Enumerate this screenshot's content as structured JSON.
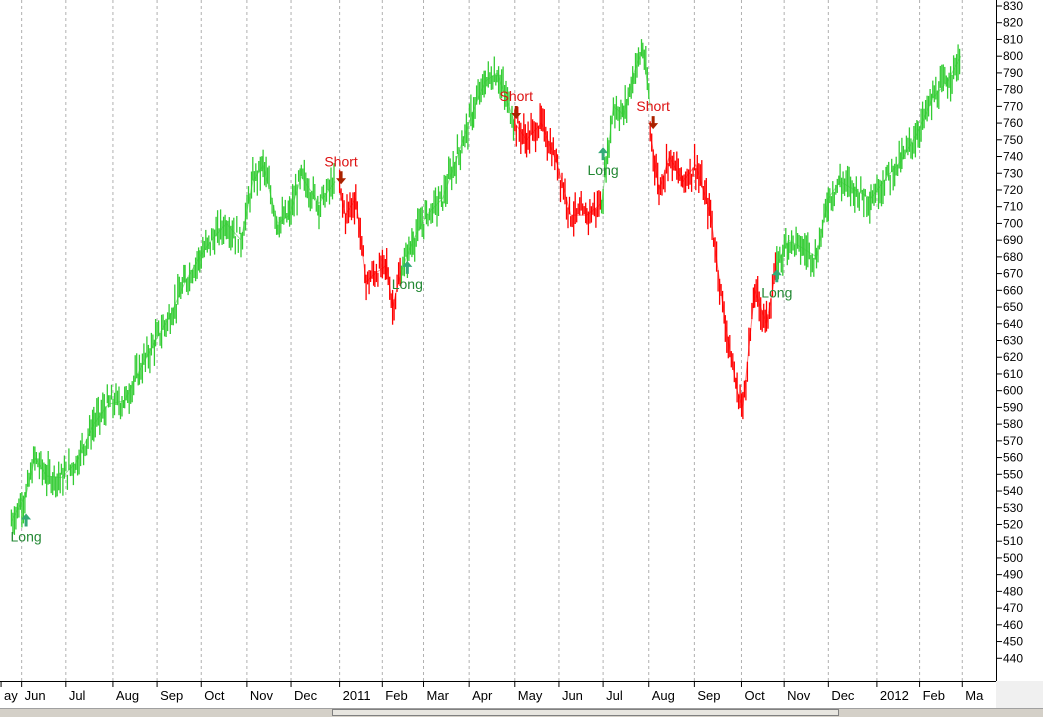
{
  "colors": {
    "long_trend": "#33cc33",
    "short_trend": "#ff0000",
    "long_signal": "#33aa77",
    "short_signal": "#aa2200",
    "long_label": "#228833",
    "short_label": "#dd1111",
    "grid": "#b0b0b0"
  },
  "chart_data": {
    "type": "line",
    "title": "",
    "xlabel": "",
    "ylabel": "",
    "ylim": [
      430,
      830
    ],
    "y_ticks": [
      440,
      450,
      460,
      470,
      480,
      490,
      500,
      510,
      520,
      530,
      540,
      550,
      560,
      570,
      580,
      590,
      600,
      610,
      620,
      630,
      640,
      650,
      660,
      670,
      680,
      690,
      700,
      710,
      720,
      730,
      740,
      750,
      760,
      770,
      780,
      790,
      800,
      810,
      820,
      830
    ],
    "x_labels": [
      {
        "date": "2010-05-18",
        "label": "ay"
      },
      {
        "date": "2010-06-01",
        "label": "Jun"
      },
      {
        "date": "2010-07-01",
        "label": "Jul"
      },
      {
        "date": "2010-08-02",
        "label": "Aug"
      },
      {
        "date": "2010-09-01",
        "label": "Sep"
      },
      {
        "date": "2010-10-01",
        "label": "Oct"
      },
      {
        "date": "2010-11-01",
        "label": "Nov"
      },
      {
        "date": "2010-12-01",
        "label": "Dec"
      },
      {
        "date": "2011-01-03",
        "label": "2011"
      },
      {
        "date": "2011-02-01",
        "label": "Feb"
      },
      {
        "date": "2011-03-01",
        "label": "Mar"
      },
      {
        "date": "2011-04-01",
        "label": "Apr"
      },
      {
        "date": "2011-05-02",
        "label": "May"
      },
      {
        "date": "2011-06-01",
        "label": "Jun"
      },
      {
        "date": "2011-07-01",
        "label": "Jul"
      },
      {
        "date": "2011-08-01",
        "label": "Aug"
      },
      {
        "date": "2011-09-01",
        "label": "Sep"
      },
      {
        "date": "2011-10-03",
        "label": "Oct"
      },
      {
        "date": "2011-11-01",
        "label": "Nov"
      },
      {
        "date": "2011-12-01",
        "label": "Dec"
      },
      {
        "date": "2012-01-03",
        "label": "2012"
      },
      {
        "date": "2012-02-01",
        "label": "Feb"
      },
      {
        "date": "2012-03-01",
        "label": "Ma"
      }
    ],
    "series": [
      {
        "color": "#33cc33",
        "x": [
          "2010-05-25",
          "2010-06-04",
          "2010-06-10",
          "2010-06-18",
          "2010-06-28",
          "2010-07-08",
          "2010-07-20",
          "2010-07-30",
          "2010-08-10",
          "2010-08-20",
          "2010-08-31",
          "2010-09-10",
          "2010-09-20",
          "2010-09-30",
          "2010-10-08",
          "2010-10-18",
          "2010-10-28",
          "2010-11-05",
          "2010-11-12",
          "2010-11-22",
          "2010-11-30",
          "2010-12-08",
          "2010-12-20",
          "2010-12-31"
        ],
        "values": [
          522,
          538,
          560,
          549,
          548,
          557,
          580,
          592,
          594,
          612,
          630,
          645,
          665,
          680,
          690,
          700,
          690,
          725,
          735,
          700,
          705,
          728,
          712,
          725
        ]
      },
      {
        "color": "#ff0000",
        "x": [
          "2011-01-03",
          "2011-01-07",
          "2011-01-14",
          "2011-01-21",
          "2011-01-27",
          "2011-02-04",
          "2011-02-08",
          "2011-02-14"
        ],
        "values": [
          720,
          705,
          715,
          665,
          670,
          675,
          650,
          672
        ]
      },
      {
        "color": "#33cc33",
        "x": [
          "2011-02-14",
          "2011-02-22",
          "2011-03-03",
          "2011-03-14",
          "2011-03-24",
          "2011-04-04",
          "2011-04-12",
          "2011-04-20",
          "2011-04-26",
          "2011-05-02"
        ],
        "values": [
          672,
          690,
          705,
          715,
          740,
          768,
          785,
          790,
          775,
          760
        ]
      },
      {
        "color": "#ff0000",
        "x": [
          "2011-05-02",
          "2011-05-10",
          "2011-05-20",
          "2011-05-31",
          "2011-06-09",
          "2011-06-20",
          "2011-06-30"
        ],
        "values": [
          760,
          750,
          760,
          735,
          705,
          705,
          712
        ]
      },
      {
        "color": "#33cc33",
        "x": [
          "2011-06-30",
          "2011-07-08",
          "2011-07-15",
          "2011-07-22",
          "2011-07-28",
          "2011-08-02"
        ],
        "values": [
          712,
          770,
          765,
          790,
          805,
          770
        ]
      },
      {
        "color": "#ff0000",
        "x": [
          "2011-08-02",
          "2011-08-08",
          "2011-08-15",
          "2011-08-24",
          "2011-09-02",
          "2011-09-12",
          "2011-09-22",
          "2011-09-30",
          "2011-10-04",
          "2011-10-12",
          "2011-10-20",
          "2011-10-27"
        ],
        "values": [
          755,
          720,
          740,
          725,
          735,
          705,
          640,
          600,
          590,
          660,
          640,
          675
        ]
      },
      {
        "color": "#33cc33",
        "x": [
          "2011-10-27",
          "2011-11-04",
          "2011-11-14",
          "2011-11-23",
          "2011-12-01",
          "2011-12-09",
          "2011-12-19",
          "2011-12-30",
          "2012-01-10",
          "2012-01-20",
          "2012-01-31",
          "2012-02-10",
          "2012-02-20",
          "2012-02-29"
        ],
        "values": [
          675,
          690,
          685,
          680,
          715,
          725,
          720,
          715,
          728,
          738,
          755,
          775,
          785,
          800
        ]
      }
    ],
    "signals": [
      {
        "type": "long",
        "label": "Long",
        "date": "2010-06-04",
        "value": 523
      },
      {
        "type": "short",
        "label": "Short",
        "date": "2011-01-04",
        "value": 727
      },
      {
        "type": "long",
        "label": "Long",
        "date": "2011-02-18",
        "value": 674
      },
      {
        "type": "short",
        "label": "Short",
        "date": "2011-05-03",
        "value": 766
      },
      {
        "type": "long",
        "label": "Long",
        "date": "2011-07-01",
        "value": 742
      },
      {
        "type": "short",
        "label": "Short",
        "date": "2011-08-04",
        "value": 760
      },
      {
        "type": "long",
        "label": "Long",
        "date": "2011-10-27",
        "value": 669
      }
    ],
    "grid": true,
    "legend": "none"
  }
}
